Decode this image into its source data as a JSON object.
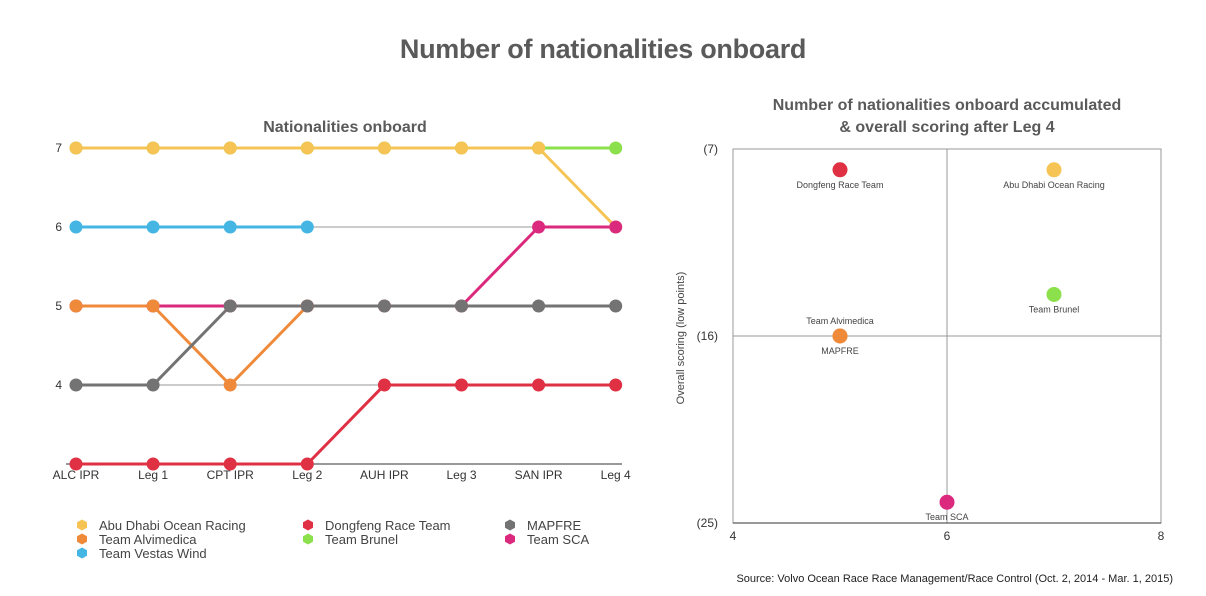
{
  "title": "Number of nationalities onboard",
  "source": "Source: Volvo Ocean Race Race Management/Race Control (Oct. 2, 2014 - Mar. 1, 2015)",
  "chart_data": [
    {
      "type": "line",
      "title": "Nationalities onboard",
      "categories": [
        "ALC IPR",
        "Leg 1",
        "CPT IPR",
        "Leg 2",
        "AUH IPR",
        "Leg 3",
        "SAN IPR",
        "Leg 4"
      ],
      "yticks": [
        7,
        6,
        5,
        4
      ],
      "ylim": [
        3,
        7
      ],
      "grid": "horizontal",
      "legend_position": "bottom",
      "series": [
        {
          "name": "Team Brunel",
          "color": "#8ce04b",
          "values": [
            7,
            7,
            7,
            7,
            7,
            7,
            7,
            7
          ]
        },
        {
          "name": "Abu Dhabi Ocean Racing",
          "color": "#f6c454",
          "values": [
            7,
            7,
            7,
            7,
            7,
            7,
            7,
            6
          ]
        },
        {
          "name": "Team Vestas Wind",
          "color": "#45b6e3",
          "values": [
            6,
            6,
            6,
            6,
            null,
            null,
            null,
            null
          ]
        },
        {
          "name": "Team SCA",
          "color": "#db2a7d",
          "values": [
            5,
            5,
            5,
            5,
            5,
            5,
            6,
            6
          ]
        },
        {
          "name": "Dongfeng Race Team",
          "color": "#e03043",
          "values": [
            3,
            3,
            3,
            3,
            4,
            4,
            4,
            4
          ]
        },
        {
          "name": "Team Alvimedica",
          "color": "#ef8a3b",
          "values": [
            5,
            5,
            4,
            5,
            null,
            null,
            null,
            null
          ]
        },
        {
          "name": "MAPFRE",
          "color": "#737373",
          "values": [
            4,
            4,
            5,
            5,
            5,
            5,
            5,
            5
          ]
        }
      ],
      "legend": [
        {
          "name": "Abu Dhabi Ocean Racing",
          "color": "#f6c454"
        },
        {
          "name": "Dongfeng Race Team",
          "color": "#e03043"
        },
        {
          "name": "MAPFRE",
          "color": "#737373"
        },
        {
          "name": "Team Alvimedica",
          "color": "#ef8a3b"
        },
        {
          "name": "Team Brunel",
          "color": "#8ce04b"
        },
        {
          "name": "Team SCA",
          "color": "#db2a7d"
        },
        {
          "name": "Team Vestas Wind",
          "color": "#45b6e3"
        }
      ]
    },
    {
      "type": "scatter",
      "title_lines": [
        "Number of nationalities onboard accumulated",
        "& overall scoring after Leg 4"
      ],
      "ylabel": "Overall scoring (low points)",
      "xlim": [
        4,
        8
      ],
      "ylim": [
        7,
        25
      ],
      "y_reversed": true,
      "xticks": [
        "4",
        "6",
        "8"
      ],
      "yticks": [
        "(7)",
        "(16)",
        "(25)"
      ],
      "grid": "quadrant lines at x=6, y=16",
      "points": [
        {
          "name": "Dongfeng Race Team",
          "x": 5,
          "y": 8,
          "color": "#e03043",
          "label_pos": "below"
        },
        {
          "name": "Abu Dhabi Ocean Racing",
          "x": 7,
          "y": 8,
          "color": "#f6c454",
          "label_pos": "below"
        },
        {
          "name": "Team Brunel",
          "x": 7,
          "y": 14,
          "color": "#8ce04b",
          "label_pos": "below"
        },
        {
          "name": "Team Alvimedica",
          "x": 5,
          "y": 16,
          "color": "#ef8a3b",
          "label_pos": "above"
        },
        {
          "name": "MAPFRE",
          "x": 5,
          "y": 16,
          "color": "#ef8a3b",
          "label_pos": "below"
        },
        {
          "name": "Team SCA",
          "x": 6,
          "y": 24,
          "color": "#db2a7d",
          "label_pos": "below"
        }
      ]
    }
  ]
}
